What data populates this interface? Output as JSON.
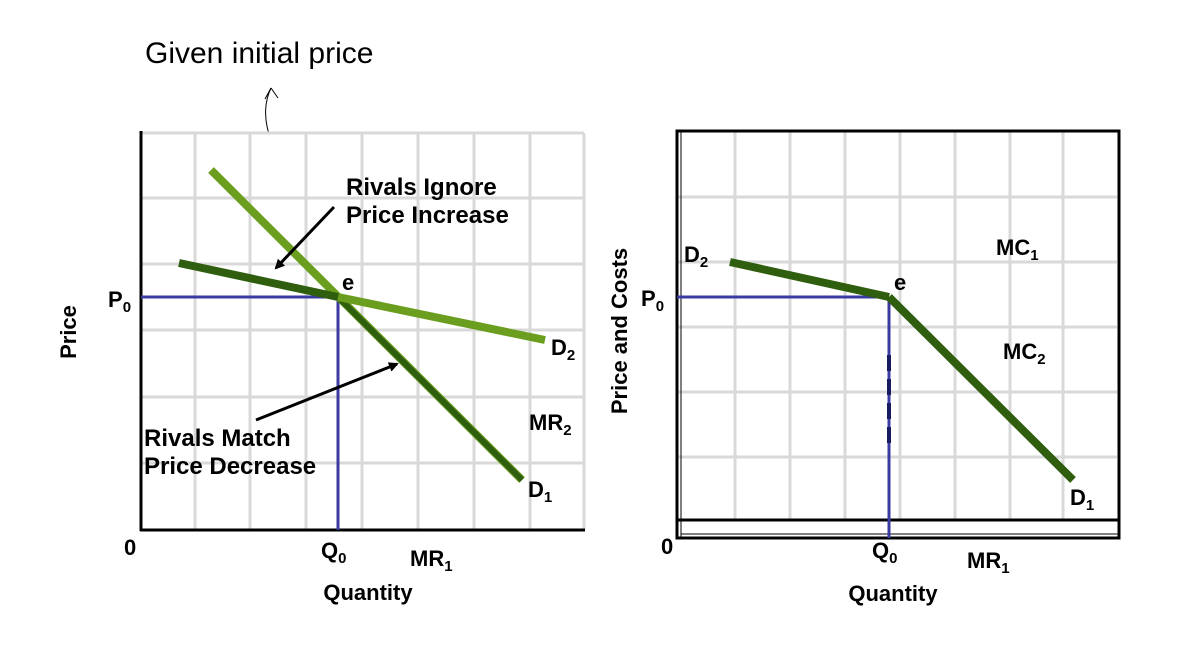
{
  "annotation_top": "Given initial price",
  "chart_data": [
    {
      "type": "line",
      "title": "",
      "xlabel": "Quantity",
      "ylabel": "Price",
      "grid": true,
      "legend": "none",
      "origin_label": "0",
      "price_label": "P",
      "price_sub": "0",
      "quantity_label": "Q",
      "quantity_sub": "0",
      "kink_label": "e",
      "series": [
        {
          "name": "D1",
          "label_main": "D",
          "label_sub": "1",
          "color": "#2e5e0e"
        },
        {
          "name": "D2",
          "label_main": "D",
          "label_sub": "2",
          "color": "#6b9e1f"
        }
      ],
      "extra_labels": [
        {
          "main": "MR",
          "sub": "2"
        },
        {
          "main": "MR",
          "sub": "1"
        }
      ],
      "annotations": {
        "ignore_line1": "Rivals Ignore",
        "ignore_line2": "Price Increase",
        "match_line1": "Rivals Match",
        "match_line2": "Price Decrease"
      }
    },
    {
      "type": "line",
      "title": "",
      "xlabel": "Quantity",
      "ylabel": "Price and Costs",
      "grid": true,
      "legend": "none",
      "origin_label": "0",
      "price_label": "P",
      "price_sub": "0",
      "quantity_label": "Q",
      "quantity_sub": "0",
      "kink_label": "e",
      "series": [
        {
          "name": "D2 (above P0)",
          "label_main": "D",
          "label_sub": "2",
          "color": "#2e5e0e"
        },
        {
          "name": "D1 (below P0)",
          "label_main": "D",
          "label_sub": "1",
          "color": "#2e5e0e"
        }
      ],
      "extra_labels": [
        {
          "main": "MC",
          "sub": "1"
        },
        {
          "main": "MC",
          "sub": "2"
        },
        {
          "main": "MR",
          "sub": "1"
        }
      ]
    }
  ],
  "colors": {
    "dark_green": "#2e5e0e",
    "light_green": "#6b9e1f",
    "guide_blue": "#3a3aa0",
    "grid": "#d9d9d9"
  }
}
